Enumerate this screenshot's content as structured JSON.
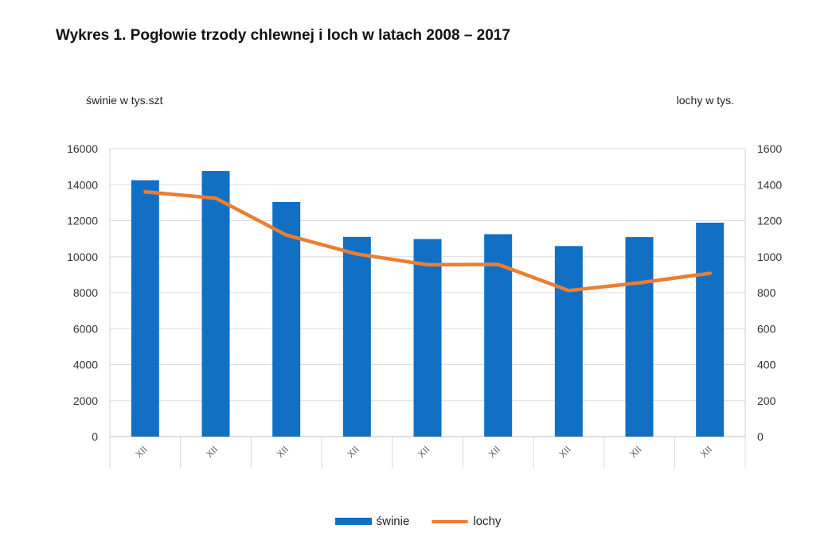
{
  "chart_data": {
    "type": "bar",
    "title": "Wykres 1. Pogłowie trzody chlewnej i loch w latach 2008 – 2017",
    "ylabel_left": "świnie  w  tys.szt",
    "ylabel_right": "lochy  w  tys.",
    "categories": [
      "XII",
      "XII",
      "XII",
      "XII",
      "XII",
      "XII",
      "XII",
      "XII",
      "XII"
    ],
    "ylim_left": [
      0,
      16000
    ],
    "ylim_right": [
      0,
      1600
    ],
    "yticks_left": [
      "0",
      "2000",
      "4000",
      "6000",
      "8000",
      "10000",
      "12000",
      "14000",
      "16000"
    ],
    "yticks_right": [
      "0",
      "200",
      "400",
      "600",
      "800",
      "1000",
      "1200",
      "1400",
      "1600"
    ],
    "grid": true,
    "legend_position": "bottom",
    "series": [
      {
        "name": "świnie",
        "type": "bar",
        "axis": "left",
        "color": "#1170C4",
        "values": [
          14250,
          14760,
          13040,
          11100,
          10980,
          11250,
          10590,
          11090,
          11890
        ]
      },
      {
        "name": "lochy",
        "type": "line",
        "axis": "right",
        "color": "#ED7D31",
        "values": [
          1360,
          1325,
          1120,
          1015,
          955,
          957,
          812,
          855,
          908
        ]
      }
    ]
  }
}
